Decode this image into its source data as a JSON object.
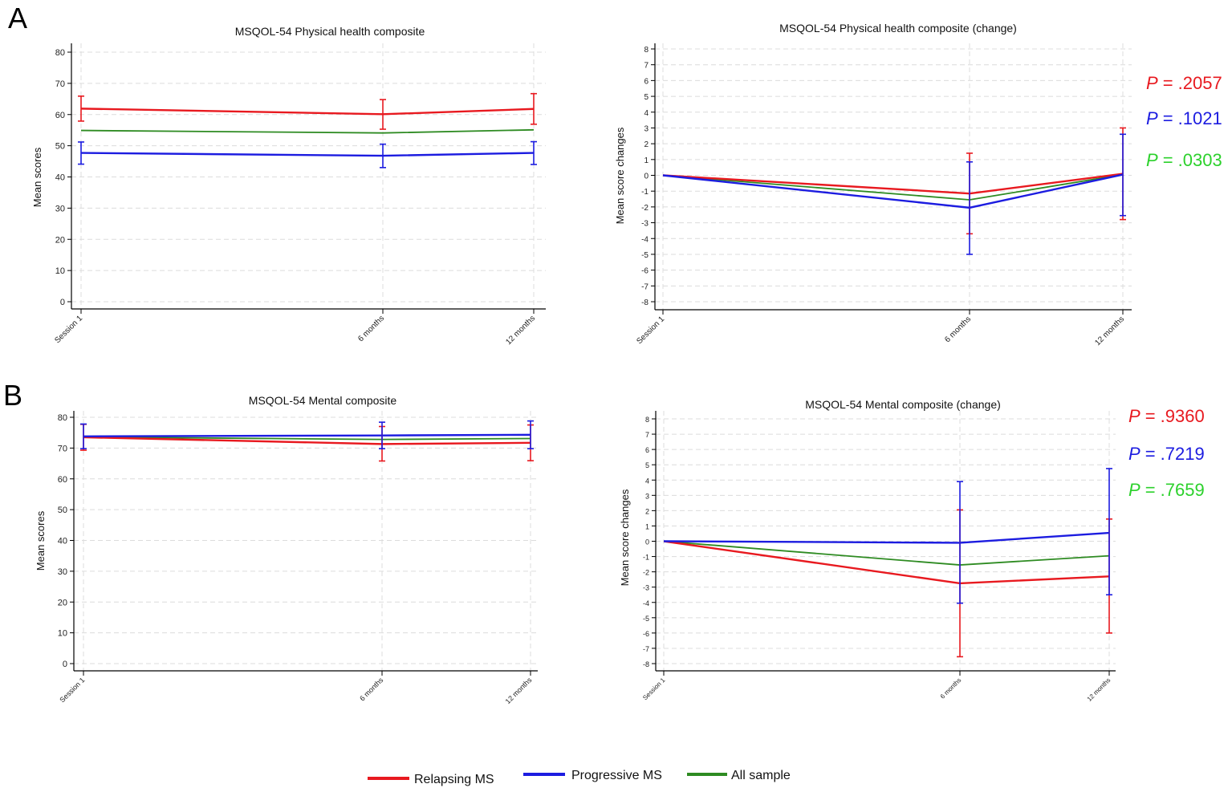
{
  "panel_labels": [
    "A",
    "B"
  ],
  "colors": {
    "relapsing": "#e8191f",
    "progressive": "#1c1ce0",
    "all": "#2e8b22",
    "p_all": "#2cd12c"
  },
  "legend": [
    {
      "label": "Relapsing MS",
      "color": "#e8191f"
    },
    {
      "label": "Progressive MS",
      "color": "#1c1ce0"
    },
    {
      "label": "All sample",
      "color": "#2e8b22"
    }
  ],
  "chart_data": [
    {
      "id": "a-left",
      "type": "line",
      "title": "MSQOL-54 Physical health composite",
      "ylabel": "Mean scores",
      "xlabel": "",
      "categories": [
        "Session 1",
        "6 months",
        "12 months"
      ],
      "x": [
        0,
        6,
        12
      ],
      "ylim": [
        0,
        80
      ],
      "yticks": [
        0,
        10,
        20,
        30,
        40,
        50,
        60,
        70,
        80
      ],
      "series": [
        {
          "name": "Relapsing MS",
          "values": [
            61.9,
            60.1,
            61.8
          ],
          "err_low": [
            57.9,
            55.3,
            56.9
          ],
          "err_high": [
            65.9,
            64.8,
            66.7
          ]
        },
        {
          "name": "Progressive MS",
          "values": [
            47.7,
            46.8,
            47.7
          ],
          "err_low": [
            44.1,
            43.0,
            44.0
          ],
          "err_high": [
            51.2,
            50.5,
            51.3
          ]
        },
        {
          "name": "All sample",
          "values": [
            54.9,
            54.1,
            55.1
          ]
        }
      ]
    },
    {
      "id": "a-right",
      "type": "line",
      "title": "MSQOL-54 Physical health composite (change)",
      "ylabel": "Mean score changes",
      "xlabel": "",
      "categories": [
        "Session 1",
        "6 months",
        "12 months"
      ],
      "x": [
        0,
        6,
        12
      ],
      "ylim": [
        -8,
        8
      ],
      "yticks": [
        -8,
        -7,
        -6,
        -5,
        -4,
        -3,
        -2,
        -1,
        0,
        1,
        2,
        3,
        4,
        5,
        6,
        7,
        8
      ],
      "series": [
        {
          "name": "Relapsing MS",
          "values": [
            0,
            -1.15,
            0.1
          ],
          "err_low": [
            null,
            -3.7,
            -2.8
          ],
          "err_high": [
            null,
            1.4,
            3.0
          ]
        },
        {
          "name": "Progressive MS",
          "values": [
            0,
            -2.05,
            0.05
          ],
          "err_low": [
            null,
            -5.0,
            -2.55
          ],
          "err_high": [
            null,
            0.85,
            2.6
          ]
        },
        {
          "name": "All sample",
          "values": [
            0,
            -1.55,
            0.05
          ]
        }
      ],
      "p_values": [
        {
          "series": "Relapsing MS",
          "label": "P",
          "value": "= .2057"
        },
        {
          "series": "Progressive MS",
          "label": "P",
          "value": "= .1021"
        },
        {
          "series": "All sample",
          "label": "P",
          "value": "= .0303"
        }
      ]
    },
    {
      "id": "b-left",
      "type": "line",
      "title": "MSQOL-54 Mental composite",
      "ylabel": "Mean scores",
      "xlabel": "",
      "categories": [
        "Session 1",
        "6 months",
        "12 months"
      ],
      "x": [
        0,
        6,
        12
      ],
      "ylim": [
        0,
        80
      ],
      "yticks": [
        0,
        10,
        20,
        30,
        40,
        50,
        60,
        70,
        80
      ],
      "series": [
        {
          "name": "Relapsing MS",
          "values": [
            73.5,
            71.3,
            71.7
          ],
          "err_low": [
            69.3,
            65.8,
            65.9
          ],
          "err_high": [
            77.7,
            77.0,
            77.5
          ]
        },
        {
          "name": "Progressive MS",
          "values": [
            73.8,
            74.1,
            74.3
          ],
          "err_low": [
            69.8,
            69.8,
            69.8
          ],
          "err_high": [
            77.8,
            78.4,
            78.8
          ]
        },
        {
          "name": "All sample",
          "values": [
            73.6,
            72.8,
            73.1
          ]
        }
      ]
    },
    {
      "id": "b-right",
      "type": "line",
      "title": "MSQOL-54 Mental composite (change)",
      "ylabel": "Mean score changes",
      "xlabel": "",
      "categories": [
        "Session 1",
        "6 months",
        "12 months"
      ],
      "x": [
        0,
        6,
        12
      ],
      "ylim": [
        -8,
        8
      ],
      "yticks": [
        -8,
        -7,
        -6,
        -5,
        -4,
        -3,
        -2,
        -1,
        0,
        1,
        2,
        3,
        4,
        5,
        6,
        7,
        8
      ],
      "series": [
        {
          "name": "Relapsing MS",
          "values": [
            0,
            -2.75,
            -2.3
          ],
          "err_low": [
            null,
            -7.55,
            -6.0
          ],
          "err_high": [
            null,
            2.05,
            1.45
          ]
        },
        {
          "name": "Progressive MS",
          "values": [
            0,
            -0.1,
            0.55
          ],
          "err_low": [
            null,
            -4.05,
            -3.5
          ],
          "err_high": [
            null,
            3.9,
            4.75
          ]
        },
        {
          "name": "All sample",
          "values": [
            0,
            -1.55,
            -0.95
          ]
        }
      ],
      "p_values": [
        {
          "series": "Relapsing MS",
          "label": "P",
          "value": "= .9360"
        },
        {
          "series": "Progressive MS",
          "label": "P",
          "value": "= .7219"
        },
        {
          "series": "All sample",
          "label": "P",
          "value": "= .7659"
        }
      ]
    }
  ]
}
